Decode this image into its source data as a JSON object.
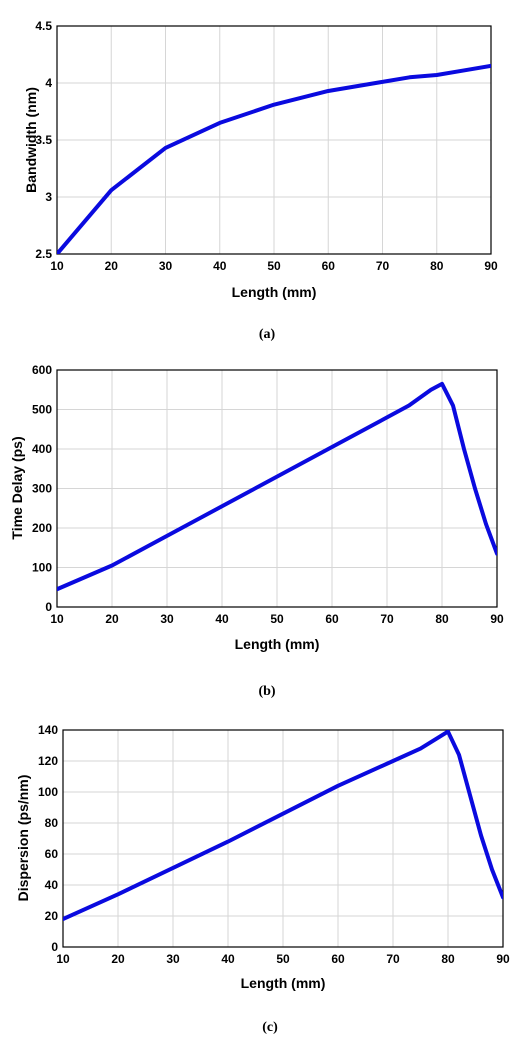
{
  "chart_data": [
    {
      "type": "line",
      "caption": "(a)",
      "xlabel": "Length (mm)",
      "ylabel": "Bandwidth (nm)",
      "xlim": [
        10,
        90
      ],
      "ylim": [
        2.5,
        4.5
      ],
      "xticks": [
        "10",
        "20",
        "30",
        "40",
        "50",
        "60",
        "70",
        "80",
        "90"
      ],
      "yticks": [
        "2.5",
        "3",
        "3.5",
        "4",
        "4.5"
      ],
      "grid": true,
      "line_color": "#0a0adf",
      "series": [
        {
          "x": [
            10,
            20,
            30,
            40,
            50,
            60,
            70,
            75,
            80,
            85,
            90
          ],
          "values": [
            2.5,
            3.06,
            3.43,
            3.65,
            3.81,
            3.93,
            4.01,
            4.05,
            4.07,
            4.11,
            4.15
          ]
        }
      ]
    },
    {
      "type": "line",
      "caption": "(b)",
      "xlabel": "Length (mm)",
      "ylabel": "Time Delay (ps)",
      "xlim": [
        10,
        90
      ],
      "ylim": [
        0,
        600
      ],
      "xticks": [
        "10",
        "20",
        "30",
        "40",
        "50",
        "60",
        "70",
        "80",
        "90"
      ],
      "yticks": [
        "0",
        "100",
        "200",
        "300",
        "400",
        "500",
        "600"
      ],
      "grid": true,
      "line_color": "#0a0adf",
      "series": [
        {
          "x": [
            10,
            20,
            30,
            40,
            50,
            60,
            70,
            74,
            78,
            80,
            82,
            84,
            86,
            88,
            90
          ],
          "values": [
            45,
            105,
            180,
            255,
            330,
            405,
            480,
            510,
            550,
            565,
            510,
            400,
            300,
            210,
            135
          ]
        }
      ]
    },
    {
      "type": "line",
      "caption": "(c)",
      "xlabel": "Length (mm)",
      "ylabel": "Dispersion (ps/nm)",
      "xlim": [
        10,
        90
      ],
      "ylim": [
        0,
        140
      ],
      "xticks": [
        "10",
        "20",
        "30",
        "40",
        "50",
        "60",
        "70",
        "80",
        "90"
      ],
      "yticks": [
        "0",
        "20",
        "40",
        "60",
        "80",
        "100",
        "120",
        "140"
      ],
      "grid": true,
      "line_color": "#0a0adf",
      "series": [
        {
          "x": [
            10,
            20,
            30,
            40,
            50,
            60,
            70,
            75,
            80,
            82,
            84,
            86,
            88,
            90
          ],
          "values": [
            18,
            34,
            51,
            68,
            86,
            104,
            120,
            128,
            139,
            124,
            98,
            72,
            50,
            32
          ]
        }
      ]
    }
  ]
}
